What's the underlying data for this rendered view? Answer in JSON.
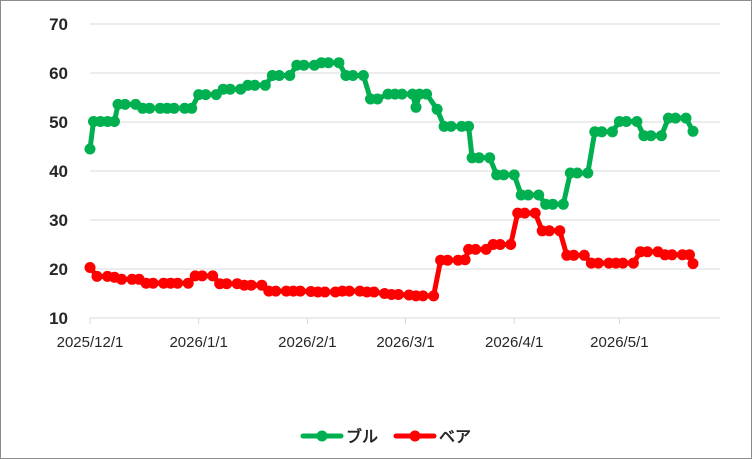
{
  "chart_data": {
    "type": "line",
    "ylim": [
      10,
      70
    ],
    "yticks": [
      "10",
      "20",
      "30",
      "40",
      "50",
      "60",
      "70"
    ],
    "xticks": [
      "2025/12/1",
      "2026/1/1",
      "2026/2/1",
      "2026/3/1",
      "2026/4/1",
      "2026/5/1"
    ],
    "xtick_dates": [
      "2025-12-01",
      "2026-01-01",
      "2026-02-01",
      "2026-03-01",
      "2026-04-01",
      "2026-05-01"
    ],
    "x_range": [
      "2025-12-01",
      "2026-05-24"
    ],
    "grid": true,
    "legend": "bottom",
    "series": [
      {
        "name": "ブル",
        "color": "#00b050",
        "points": [
          [
            "2025-12-01",
            44.5
          ],
          [
            "2025-12-02",
            50.1
          ],
          [
            "2025-12-04",
            50.1
          ],
          [
            "2025-12-06",
            50.1
          ],
          [
            "2025-12-08",
            50.1
          ],
          [
            "2025-12-09",
            53.6
          ],
          [
            "2025-12-11",
            53.6
          ],
          [
            "2025-12-14",
            53.6
          ],
          [
            "2025-12-16",
            52.8
          ],
          [
            "2025-12-18",
            52.8
          ],
          [
            "2025-12-21",
            52.8
          ],
          [
            "2025-12-23",
            52.8
          ],
          [
            "2025-12-25",
            52.8
          ],
          [
            "2025-12-28",
            52.8
          ],
          [
            "2025-12-30",
            52.8
          ],
          [
            "2026-01-01",
            55.6
          ],
          [
            "2026-01-03",
            55.6
          ],
          [
            "2026-01-06",
            55.6
          ],
          [
            "2026-01-08",
            56.7
          ],
          [
            "2026-01-10",
            56.7
          ],
          [
            "2026-01-13",
            56.7
          ],
          [
            "2026-01-15",
            57.5
          ],
          [
            "2026-01-17",
            57.5
          ],
          [
            "2026-01-20",
            57.5
          ],
          [
            "2026-01-22",
            59.5
          ],
          [
            "2026-01-24",
            59.5
          ],
          [
            "2026-01-27",
            59.5
          ],
          [
            "2026-01-29",
            61.6
          ],
          [
            "2026-01-31",
            61.6
          ],
          [
            "2026-02-03",
            61.6
          ],
          [
            "2026-02-05",
            62.1
          ],
          [
            "2026-02-07",
            62.1
          ],
          [
            "2026-02-10",
            62.1
          ],
          [
            "2026-02-12",
            59.5
          ],
          [
            "2026-02-14",
            59.5
          ],
          [
            "2026-02-17",
            59.5
          ],
          [
            "2026-02-19",
            54.7
          ],
          [
            "2026-02-21",
            54.7
          ],
          [
            "2026-02-24",
            55.7
          ],
          [
            "2026-02-26",
            55.7
          ],
          [
            "2026-02-28",
            55.7
          ],
          [
            "2026-03-03",
            55.7
          ],
          [
            "2026-03-04",
            53.0
          ],
          [
            "2026-03-05",
            55.7
          ],
          [
            "2026-03-07",
            55.7
          ],
          [
            "2026-03-10",
            52.6
          ],
          [
            "2026-03-12",
            49.1
          ],
          [
            "2026-03-14",
            49.1
          ],
          [
            "2026-03-17",
            49.1
          ],
          [
            "2026-03-19",
            49.1
          ],
          [
            "2026-03-20",
            42.7
          ],
          [
            "2026-03-22",
            42.7
          ],
          [
            "2026-03-25",
            42.7
          ],
          [
            "2026-03-27",
            39.2
          ],
          [
            "2026-03-29",
            39.2
          ],
          [
            "2026-04-01",
            39.2
          ],
          [
            "2026-04-03",
            35.1
          ],
          [
            "2026-04-05",
            35.1
          ],
          [
            "2026-04-08",
            35.1
          ],
          [
            "2026-04-10",
            33.2
          ],
          [
            "2026-04-12",
            33.2
          ],
          [
            "2026-04-15",
            33.2
          ],
          [
            "2026-04-17",
            39.6
          ],
          [
            "2026-04-19",
            39.6
          ],
          [
            "2026-04-22",
            39.6
          ],
          [
            "2026-04-24",
            48.0
          ],
          [
            "2026-04-26",
            48.0
          ],
          [
            "2026-04-29",
            48.0
          ],
          [
            "2026-05-01",
            50.1
          ],
          [
            "2026-05-03",
            50.1
          ],
          [
            "2026-05-06",
            50.1
          ],
          [
            "2026-05-08",
            47.2
          ],
          [
            "2026-05-10",
            47.2
          ],
          [
            "2026-05-13",
            47.2
          ],
          [
            "2026-05-15",
            50.8
          ],
          [
            "2026-05-17",
            50.8
          ],
          [
            "2026-05-20",
            50.8
          ],
          [
            "2026-05-22",
            48.1
          ]
        ]
      },
      {
        "name": "ベア",
        "color": "#ff0000",
        "points": [
          [
            "2025-12-01",
            20.3
          ],
          [
            "2025-12-03",
            18.5
          ],
          [
            "2025-12-06",
            18.5
          ],
          [
            "2025-12-08",
            18.3
          ],
          [
            "2025-12-10",
            17.9
          ],
          [
            "2025-12-13",
            17.9
          ],
          [
            "2025-12-15",
            17.9
          ],
          [
            "2025-12-17",
            17.1
          ],
          [
            "2025-12-19",
            17.1
          ],
          [
            "2025-12-22",
            17.1
          ],
          [
            "2025-12-24",
            17.1
          ],
          [
            "2025-12-26",
            17.1
          ],
          [
            "2025-12-29",
            17.1
          ],
          [
            "2025-12-31",
            18.6
          ],
          [
            "2026-01-02",
            18.6
          ],
          [
            "2026-01-05",
            18.6
          ],
          [
            "2026-01-07",
            17.0
          ],
          [
            "2026-01-09",
            17.0
          ],
          [
            "2026-01-12",
            17.0
          ],
          [
            "2026-01-14",
            16.7
          ],
          [
            "2026-01-16",
            16.7
          ],
          [
            "2026-01-19",
            16.7
          ],
          [
            "2026-01-21",
            15.5
          ],
          [
            "2026-01-23",
            15.5
          ],
          [
            "2026-01-26",
            15.5
          ],
          [
            "2026-01-28",
            15.5
          ],
          [
            "2026-01-30",
            15.5
          ],
          [
            "2026-02-02",
            15.4
          ],
          [
            "2026-02-04",
            15.3
          ],
          [
            "2026-02-06",
            15.3
          ],
          [
            "2026-02-09",
            15.3
          ],
          [
            "2026-02-11",
            15.5
          ],
          [
            "2026-02-13",
            15.5
          ],
          [
            "2026-02-16",
            15.5
          ],
          [
            "2026-02-18",
            15.3
          ],
          [
            "2026-02-20",
            15.3
          ],
          [
            "2026-02-23",
            15.0
          ],
          [
            "2026-02-25",
            14.8
          ],
          [
            "2026-02-27",
            14.8
          ],
          [
            "2026-03-02",
            14.7
          ],
          [
            "2026-03-04",
            14.5
          ],
          [
            "2026-03-06",
            14.5
          ],
          [
            "2026-03-09",
            14.5
          ],
          [
            "2026-03-11",
            21.8
          ],
          [
            "2026-03-13",
            21.8
          ],
          [
            "2026-03-16",
            21.8
          ],
          [
            "2026-03-18",
            21.9
          ],
          [
            "2026-03-19",
            24.0
          ],
          [
            "2026-03-21",
            24.0
          ],
          [
            "2026-03-24",
            24.0
          ],
          [
            "2026-03-26",
            25.0
          ],
          [
            "2026-03-28",
            25.0
          ],
          [
            "2026-03-31",
            25.0
          ],
          [
            "2026-04-02",
            31.4
          ],
          [
            "2026-04-04",
            31.4
          ],
          [
            "2026-04-07",
            31.4
          ],
          [
            "2026-04-09",
            27.8
          ],
          [
            "2026-04-11",
            27.8
          ],
          [
            "2026-04-14",
            27.8
          ],
          [
            "2026-04-16",
            22.8
          ],
          [
            "2026-04-18",
            22.8
          ],
          [
            "2026-04-21",
            22.8
          ],
          [
            "2026-04-23",
            21.2
          ],
          [
            "2026-04-25",
            21.2
          ],
          [
            "2026-04-28",
            21.2
          ],
          [
            "2026-04-30",
            21.2
          ],
          [
            "2026-05-02",
            21.2
          ],
          [
            "2026-05-05",
            21.2
          ],
          [
            "2026-05-07",
            23.5
          ],
          [
            "2026-05-09",
            23.5
          ],
          [
            "2026-05-12",
            23.5
          ],
          [
            "2026-05-14",
            22.9
          ],
          [
            "2026-05-16",
            22.9
          ],
          [
            "2026-05-19",
            22.9
          ],
          [
            "2026-05-21",
            22.9
          ],
          [
            "2026-05-22",
            21.1
          ]
        ]
      }
    ]
  }
}
